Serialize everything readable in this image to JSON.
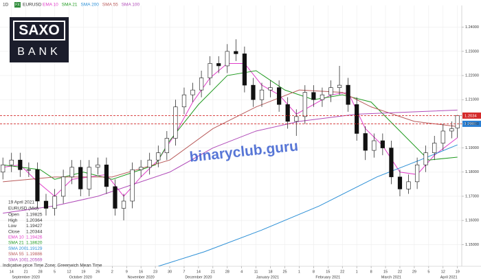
{
  "chart_data": {
    "type": "candlestick",
    "interval": "1D",
    "badge": "FX",
    "symbol": "EURUSD",
    "logo": {
      "top": "SAXO",
      "bottom": "BANK"
    },
    "watermark": "binaryclub.guru",
    "up_color": "#ffffff",
    "down_color": "#111111",
    "xlim": [
      -1,
      159.5
    ],
    "ylim": [
      1.141,
      1.249
    ],
    "grid": true,
    "x": [
      0,
      3,
      6,
      9,
      12,
      15,
      18,
      21,
      24,
      27,
      30,
      33,
      36,
      39,
      42,
      45,
      48,
      51,
      54,
      57,
      60,
      63,
      66,
      69,
      72,
      75,
      78,
      81,
      84,
      87,
      90,
      93,
      96,
      99,
      102,
      105,
      108,
      111,
      114,
      117,
      120,
      123,
      126,
      129,
      132,
      135,
      138,
      141,
      144,
      147,
      150,
      153,
      156,
      158
    ],
    "open": [
      1.18,
      1.183,
      1.185,
      1.181,
      1.181,
      1.168,
      1.165,
      1.17,
      1.178,
      1.182,
      1.173,
      1.182,
      1.183,
      1.174,
      1.165,
      1.168,
      1.181,
      1.182,
      1.185,
      1.188,
      1.194,
      1.207,
      1.212,
      1.214,
      1.219,
      1.225,
      1.224,
      1.23,
      1.229,
      1.216,
      1.21,
      1.214,
      1.215,
      1.208,
      1.201,
      1.203,
      1.213,
      1.21,
      1.212,
      1.215,
      1.216,
      1.208,
      1.196,
      1.189,
      1.193,
      1.19,
      1.178,
      1.173,
      1.176,
      1.183,
      1.188,
      1.192,
      1.197,
      1.19825
    ],
    "high": [
      1.186,
      1.188,
      1.188,
      1.184,
      1.184,
      1.171,
      1.173,
      1.181,
      1.185,
      1.185,
      1.185,
      1.186,
      1.186,
      1.177,
      1.171,
      1.184,
      1.185,
      1.188,
      1.191,
      1.197,
      1.21,
      1.215,
      1.217,
      1.222,
      1.228,
      1.228,
      1.233,
      1.235,
      1.232,
      1.219,
      1.217,
      1.218,
      1.218,
      1.211,
      1.206,
      1.216,
      1.216,
      1.215,
      1.218,
      1.224,
      1.219,
      1.211,
      1.199,
      1.196,
      1.196,
      1.193,
      1.181,
      1.179,
      1.186,
      1.191,
      1.195,
      1.2,
      1.201,
      1.20364
    ],
    "low": [
      1.177,
      1.18,
      1.178,
      1.178,
      1.165,
      1.162,
      1.162,
      1.167,
      1.175,
      1.17,
      1.17,
      1.179,
      1.171,
      1.162,
      1.16,
      1.165,
      1.178,
      1.179,
      1.182,
      1.185,
      1.191,
      1.204,
      1.209,
      1.211,
      1.216,
      1.221,
      1.221,
      1.226,
      1.213,
      1.207,
      1.207,
      1.211,
      1.205,
      1.198,
      1.195,
      1.2,
      1.207,
      1.207,
      1.209,
      1.212,
      1.205,
      1.193,
      1.185,
      1.186,
      1.187,
      1.175,
      1.17,
      1.171,
      1.173,
      1.18,
      1.185,
      1.189,
      1.194,
      1.19427
    ],
    "close": [
      1.183,
      1.185,
      1.181,
      1.181,
      1.168,
      1.165,
      1.17,
      1.178,
      1.182,
      1.173,
      1.182,
      1.183,
      1.174,
      1.165,
      1.168,
      1.181,
      1.182,
      1.185,
      1.188,
      1.194,
      1.207,
      1.212,
      1.214,
      1.219,
      1.225,
      1.224,
      1.23,
      1.229,
      1.216,
      1.21,
      1.214,
      1.215,
      1.208,
      1.201,
      1.203,
      1.213,
      1.21,
      1.212,
      1.215,
      1.216,
      1.208,
      1.196,
      1.189,
      1.193,
      1.19,
      1.178,
      1.173,
      1.176,
      1.183,
      1.188,
      1.192,
      1.197,
      1.198,
      1.20344
    ],
    "indicators": [
      {
        "name": "EMA 10",
        "color": "#e03cc8",
        "x": [
          0,
          6,
          12,
          18,
          24,
          30,
          36,
          42,
          48,
          54,
          60,
          66,
          72,
          78,
          84,
          90,
          96,
          102,
          108,
          114,
          120,
          126,
          132,
          138,
          144,
          150,
          158
        ],
        "values": [
          1.182,
          1.183,
          1.176,
          1.17,
          1.177,
          1.178,
          1.179,
          1.17,
          1.178,
          1.185,
          1.196,
          1.209,
          1.219,
          1.225,
          1.225,
          1.216,
          1.212,
          1.204,
          1.208,
          1.212,
          1.213,
          1.198,
          1.191,
          1.18,
          1.179,
          1.187,
          1.19426
        ]
      },
      {
        "name": "SMA 21",
        "color": "#1f9a1f",
        "x": [
          0,
          13,
          18,
          28,
          38,
          48,
          53,
          58,
          68,
          78,
          88,
          98,
          108,
          118,
          128,
          138,
          148,
          158
        ],
        "values": [
          1.183,
          1.181,
          1.177,
          1.18,
          1.177,
          1.181,
          1.183,
          1.193,
          1.208,
          1.22,
          1.222,
          1.214,
          1.21,
          1.212,
          1.209,
          1.197,
          1.185,
          1.1862
        ]
      },
      {
        "name": "SMA 200",
        "color": "#2b8fd6",
        "x": [
          54,
          70,
          90,
          110,
          130,
          145,
          158
        ],
        "values": [
          1.141,
          1.147,
          1.156,
          1.166,
          1.178,
          1.185,
          1.19129
        ]
      },
      {
        "name": "SMA 55",
        "color": "#b85a5a",
        "x": [
          0,
          18,
          38,
          58,
          73,
          88,
          103,
          118,
          128,
          143,
          158
        ],
        "values": [
          1.176,
          1.178,
          1.178,
          1.185,
          1.198,
          1.207,
          1.214,
          1.213,
          1.207,
          1.201,
          1.19886
        ]
      },
      {
        "name": "SMA 100",
        "color": "#b04ab8",
        "x": [
          0,
          18,
          33,
          58,
          73,
          88,
          103,
          123,
          158
        ],
        "values": [
          1.163,
          1.166,
          1.17,
          1.18,
          1.19,
          1.197,
          1.201,
          1.204,
          1.20569
        ]
      }
    ],
    "price_lines": [
      {
        "value": 1.2034,
        "label": "1.2034",
        "color": "#d42a2a"
      },
      {
        "value": 1.2,
        "label": "1.2000",
        "color": "#2a7fd4"
      }
    ],
    "yticks": [
      {
        "value": 1.15,
        "label": "1.15000"
      },
      {
        "value": 1.16,
        "label": "1.16000"
      },
      {
        "value": 1.17,
        "label": "1.17000"
      },
      {
        "value": 1.18,
        "label": "1.18000"
      },
      {
        "value": 1.19,
        "label": "1.19000"
      },
      {
        "value": 1.2,
        "label": "1.20000"
      },
      {
        "value": 1.21,
        "label": "1.21000"
      },
      {
        "value": 1.22,
        "label": "1.22000"
      },
      {
        "value": 1.23,
        "label": "1.23000"
      },
      {
        "value": 1.24,
        "label": "1.24000"
      }
    ],
    "xticks": [
      {
        "value": 3,
        "label": "14"
      },
      {
        "value": 8,
        "label": "21"
      },
      {
        "value": 13,
        "label": "28"
      },
      {
        "value": 18,
        "label": "5"
      },
      {
        "value": 23,
        "label": "12"
      },
      {
        "value": 28,
        "label": "19"
      },
      {
        "value": 33,
        "label": "26"
      },
      {
        "value": 38,
        "label": "2"
      },
      {
        "value": 43,
        "label": "9"
      },
      {
        "value": 48,
        "label": "16"
      },
      {
        "value": 53,
        "label": "23"
      },
      {
        "value": 58,
        "label": "30"
      },
      {
        "value": 63,
        "label": "7"
      },
      {
        "value": 68,
        "label": "14"
      },
      {
        "value": 73,
        "label": "21"
      },
      {
        "value": 78,
        "label": "28"
      },
      {
        "value": 83,
        "label": "4"
      },
      {
        "value": 88,
        "label": "11"
      },
      {
        "value": 93,
        "label": "18"
      },
      {
        "value": 98,
        "label": "25"
      },
      {
        "value": 103,
        "label": "1"
      },
      {
        "value": 108,
        "label": "8"
      },
      {
        "value": 113,
        "label": "15"
      },
      {
        "value": 118,
        "label": "22"
      },
      {
        "value": 123,
        "label": "1"
      },
      {
        "value": 128,
        "label": "8"
      },
      {
        "value": 133,
        "label": "15"
      },
      {
        "value": 138,
        "label": "22"
      },
      {
        "value": 143,
        "label": "29"
      },
      {
        "value": 148,
        "label": "5"
      },
      {
        "value": 153,
        "label": "12"
      },
      {
        "value": 158,
        "label": "19"
      }
    ],
    "months": [
      {
        "value": 8,
        "label": "September 2020"
      },
      {
        "value": 27,
        "label": "October 2020"
      },
      {
        "value": 48,
        "label": "November 2020"
      },
      {
        "value": 68,
        "label": "December 2020"
      },
      {
        "value": 92,
        "label": "January 2021"
      },
      {
        "value": 113,
        "label": "February 2021"
      },
      {
        "value": 135,
        "label": "March 2021"
      },
      {
        "value": 155,
        "label": "April 2021"
      }
    ],
    "info_panel": {
      "date": "19 April 2021",
      "instrument": "EURUSD (Mid)",
      "rows": [
        {
          "label": "Open",
          "value": "1.19825",
          "color": "#333333"
        },
        {
          "label": "High",
          "value": "1.20364",
          "color": "#333333"
        },
        {
          "label": "Low",
          "value": "1.19427",
          "color": "#333333"
        },
        {
          "label": "Close",
          "value": "1.20344",
          "color": "#333333"
        },
        {
          "label": "EMA 10",
          "value": "1.19426",
          "color": "#e03cc8"
        },
        {
          "label": "SMA 21",
          "value": "1.18620",
          "color": "#1f9a1f"
        },
        {
          "label": "SMA 200",
          "value": "1.19129",
          "color": "#2b8fd6"
        },
        {
          "label": "SMA 55",
          "value": "1.19886",
          "color": "#b85a5a"
        },
        {
          "label": "SMA 100",
          "value": "1.20569",
          "color": "#b04ab8"
        }
      ],
      "footer": "Indicative price   Time Zone: Greenwich Mean Time"
    }
  }
}
